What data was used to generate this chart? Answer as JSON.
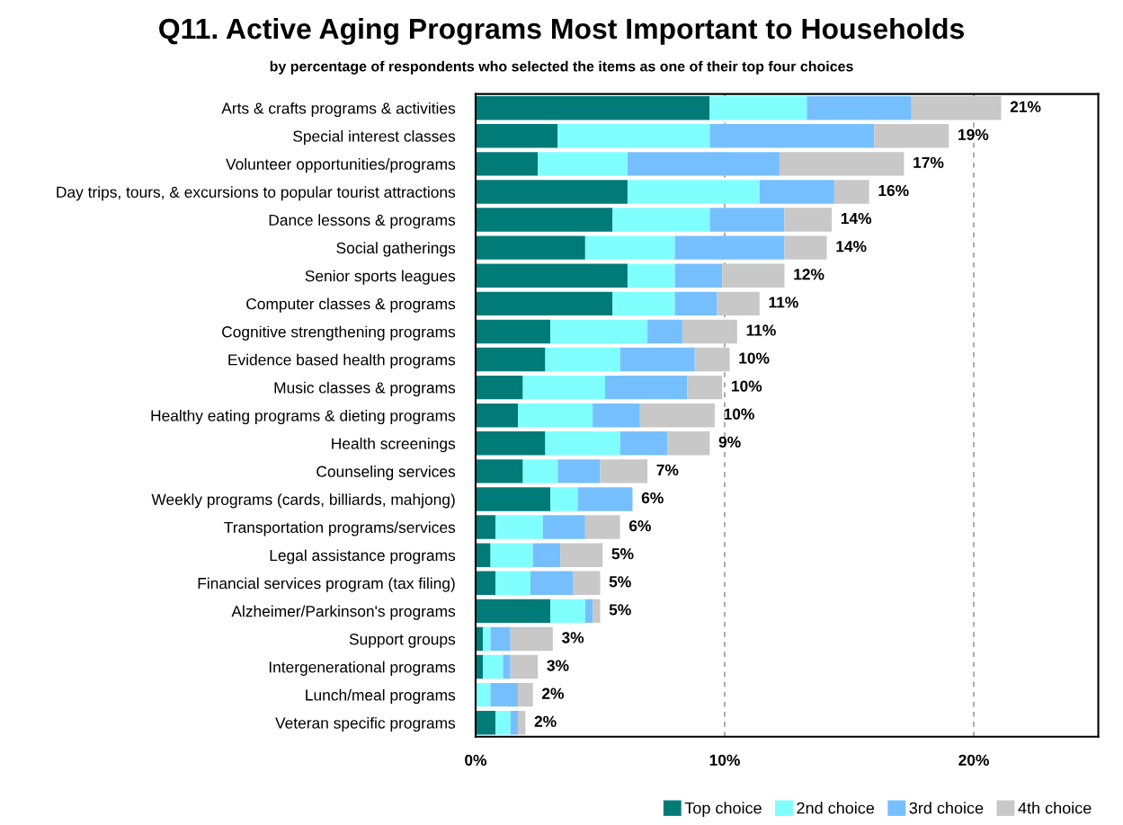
{
  "chart_data": {
    "type": "bar",
    "orientation": "horizontal",
    "stacked": true,
    "title": "Q11. Active Aging Programs Most Important to Households",
    "subtitle": "by percentage of respondents who selected the items as one of their top four choices",
    "categories": [
      "Arts & crafts programs & activities",
      "Special interest classes",
      "Volunteer opportunities/programs",
      "Day trips, tours, & excursions to popular tourist attractions",
      "Dance lessons & programs",
      "Social gatherings",
      "Senior sports leagues",
      "Computer classes & programs",
      "Cognitive strengthening programs",
      "Evidence based health programs",
      "Music classes & programs",
      "Healthy eating programs & dieting programs",
      "Health screenings",
      "Counseling services",
      "Weekly programs (cards, billiards, mahjong)",
      "Transportation programs/services",
      "Legal assistance programs",
      "Financial services program (tax filing)",
      "Alzheimer/Parkinson's programs",
      "Support groups",
      "Intergenerational programs",
      "Lunch/meal programs",
      "Veteran specific programs"
    ],
    "series": [
      {
        "name": "Top choice",
        "color": "#007b78",
        "values": [
          9.4,
          3.3,
          2.5,
          6.1,
          5.5,
          4.4,
          6.1,
          5.5,
          3.0,
          2.8,
          1.9,
          1.7,
          2.8,
          1.9,
          3.0,
          0.8,
          0.6,
          0.8,
          3.0,
          0.3,
          0.3,
          0,
          0.8
        ]
      },
      {
        "name": "2nd choice",
        "color": "#80ffff",
        "values": [
          3.9,
          6.1,
          3.6,
          5.3,
          3.9,
          3.6,
          1.9,
          2.5,
          3.9,
          3.0,
          3.3,
          3.0,
          3.0,
          1.4,
          1.1,
          1.9,
          1.7,
          1.4,
          1.4,
          0.3,
          0.8,
          0.6,
          0.6
        ]
      },
      {
        "name": "3rd choice",
        "color": "#76bfff",
        "values": [
          4.2,
          6.6,
          6.1,
          3.0,
          3.0,
          4.4,
          1.9,
          1.7,
          1.4,
          3.0,
          3.3,
          1.9,
          1.9,
          1.7,
          2.2,
          1.7,
          1.1,
          1.7,
          0.3,
          0.8,
          0.3,
          1.1,
          0.3
        ]
      },
      {
        "name": "4th choice",
        "color": "#c8c8c8",
        "values": [
          3.6,
          3.0,
          5.0,
          1.4,
          1.9,
          1.7,
          2.5,
          1.7,
          2.2,
          1.4,
          1.4,
          3.0,
          1.7,
          1.9,
          0,
          1.4,
          1.7,
          1.1,
          0.3,
          1.7,
          1.1,
          0.6,
          0.3
        ]
      }
    ],
    "totals": [
      "21%",
      "19%",
      "17%",
      "16%",
      "14%",
      "14%",
      "12%",
      "11%",
      "11%",
      "10%",
      "10%",
      "10%",
      "9%",
      "7%",
      "6%",
      "6%",
      "5%",
      "5%",
      "5%",
      "3%",
      "3%",
      "2%",
      "2%"
    ],
    "xlim": [
      0,
      25
    ],
    "xticks": [
      {
        "value": 0,
        "label": "0%"
      },
      {
        "value": 10,
        "label": "10%"
      },
      {
        "value": 20,
        "label": "20%"
      }
    ],
    "grid": "x",
    "legend": "bottom"
  }
}
